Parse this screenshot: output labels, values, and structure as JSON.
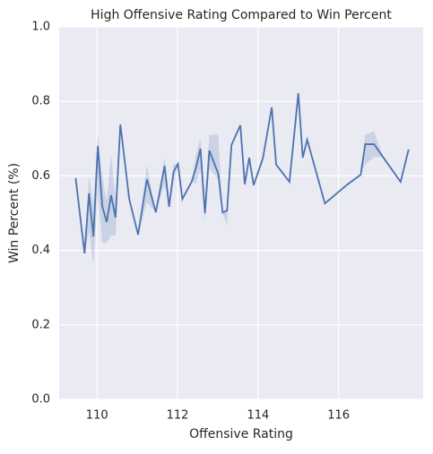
{
  "chart_data": {
    "type": "line",
    "title": "High Offensive Rating Compared to Win Percent",
    "x_label": "Offensive Rating",
    "y_label": "Win Percent (%)",
    "x": [
      109.47,
      109.69,
      109.8,
      109.91,
      110.02,
      110.13,
      110.24,
      110.35,
      110.46,
      110.58,
      110.8,
      111.02,
      111.24,
      111.46,
      111.68,
      111.79,
      111.9,
      112.01,
      112.12,
      112.35,
      112.46,
      112.57,
      112.68,
      112.79,
      113.01,
      113.12,
      113.23,
      113.34,
      113.56,
      113.67,
      113.78,
      113.89,
      114.12,
      114.34,
      114.45,
      114.78,
      115.0,
      115.11,
      115.22,
      115.66,
      116.22,
      116.55,
      116.66,
      116.88,
      117.1,
      117.54,
      117.74
    ],
    "series": [
      {
        "color": "#4c72b0",
        "values": [
          0.594,
          0.392,
          0.553,
          0.437,
          0.68,
          0.519,
          0.476,
          0.548,
          0.488,
          0.738,
          0.538,
          0.442,
          0.591,
          0.502,
          0.627,
          0.517,
          0.611,
          0.632,
          0.538,
          0.584,
          0.623,
          0.673,
          0.5,
          0.668,
          0.606,
          0.502,
          0.507,
          0.683,
          0.736,
          0.577,
          0.649,
          0.575,
          0.647,
          0.784,
          0.63,
          0.584,
          0.822,
          0.649,
          0.697,
          0.526,
          0.577,
          0.603,
          0.685,
          0.685,
          0.651,
          0.584,
          0.671
        ],
        "band_low": [
          0.594,
          0.392,
          0.45,
          0.36,
          0.55,
          0.42,
          0.42,
          0.44,
          0.44,
          0.738,
          0.538,
          0.442,
          0.53,
          0.502,
          0.58,
          0.517,
          0.58,
          0.632,
          0.538,
          0.584,
          0.58,
          0.62,
          0.48,
          0.62,
          0.59,
          0.5,
          0.47,
          0.683,
          0.736,
          0.577,
          0.649,
          0.575,
          0.647,
          0.784,
          0.63,
          0.584,
          0.822,
          0.649,
          0.697,
          0.526,
          0.577,
          0.603,
          0.63,
          0.65,
          0.651,
          0.584,
          0.671
        ],
        "band_high": [
          0.594,
          0.392,
          0.6,
          0.52,
          0.71,
          0.6,
          0.53,
          0.66,
          0.53,
          0.738,
          0.538,
          0.442,
          0.63,
          0.502,
          0.65,
          0.517,
          0.63,
          0.632,
          0.538,
          0.584,
          0.66,
          0.7,
          0.52,
          0.71,
          0.71,
          0.5,
          0.51,
          0.683,
          0.736,
          0.577,
          0.649,
          0.575,
          0.647,
          0.784,
          0.63,
          0.584,
          0.822,
          0.649,
          0.697,
          0.526,
          0.577,
          0.603,
          0.71,
          0.72,
          0.651,
          0.584,
          0.671
        ]
      }
    ],
    "xlim": [
      109.06,
      118.1
    ],
    "ylim": [
      0,
      1
    ],
    "xticks": [
      110,
      112,
      114,
      116
    ],
    "yticks": [
      {
        "value": 0,
        "label": "0.0"
      },
      0.2,
      0.4,
      0.6,
      0.8,
      {
        "value": 1,
        "label": "1.0"
      }
    ],
    "grid": true
  }
}
